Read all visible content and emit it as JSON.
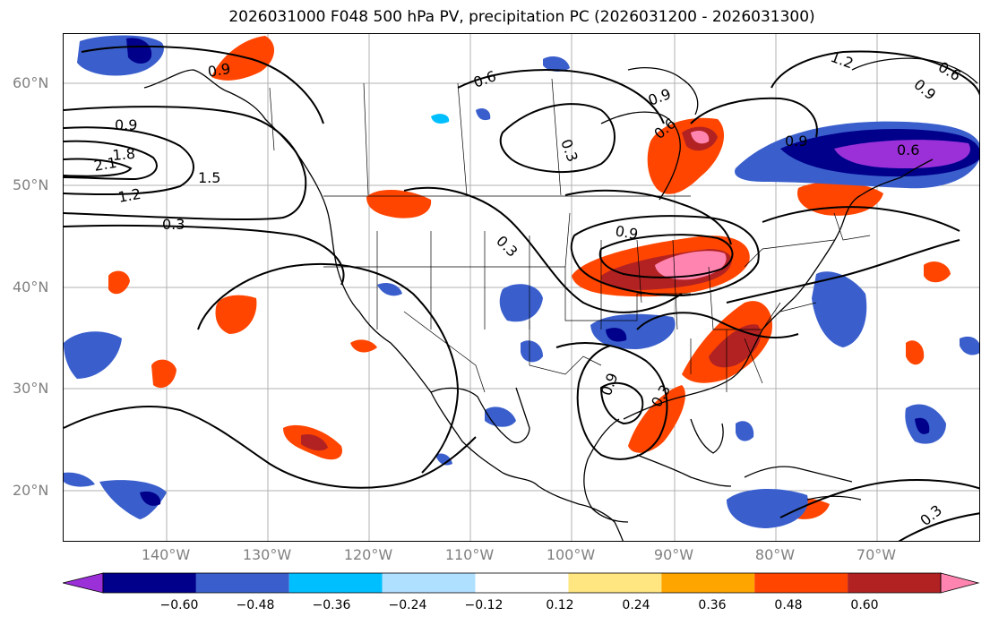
{
  "title": "2026031000 F048 500 hPa PV, precipitation PC (2026031200 - 2026031300)",
  "lat_labels": [
    "60°N",
    "50°N",
    "40°N",
    "30°N",
    "20°N"
  ],
  "lon_labels": [
    "140°W",
    "130°W",
    "120°W",
    "110°W",
    "100°W",
    "90°W",
    "80°W",
    "70°W"
  ],
  "colorbar": {
    "colors": [
      "#9b30d9",
      "#00008b",
      "#3a5fcd",
      "#00bfff",
      "#b0e0ff",
      "#ffffff",
      "#ffe680",
      "#ffa500",
      "#ff4500",
      "#b22222",
      "#ff85b0"
    ],
    "tick_labels": [
      "−0.60",
      "−0.48",
      "−0.36",
      "−0.24",
      "−0.12",
      "0.12",
      "0.24",
      "0.36",
      "0.48",
      "0.60"
    ]
  },
  "contour_labels": [
    "0.9",
    "0.9",
    "1.8",
    "2.1",
    "1.5",
    "1.2",
    "0.3",
    "0.6",
    "0.3",
    "0.9",
    "0.6",
    "0.9",
    "1.2",
    "0.6",
    "0.9",
    "0.6",
    "0.9",
    "0.3",
    "0.9",
    "0.3",
    "0.3"
  ],
  "map_features": {
    "layers": [
      "coastline",
      "country-borders",
      "state-borders",
      "lat-lon-grid",
      "pv-contours",
      "precipitation-shading"
    ]
  }
}
